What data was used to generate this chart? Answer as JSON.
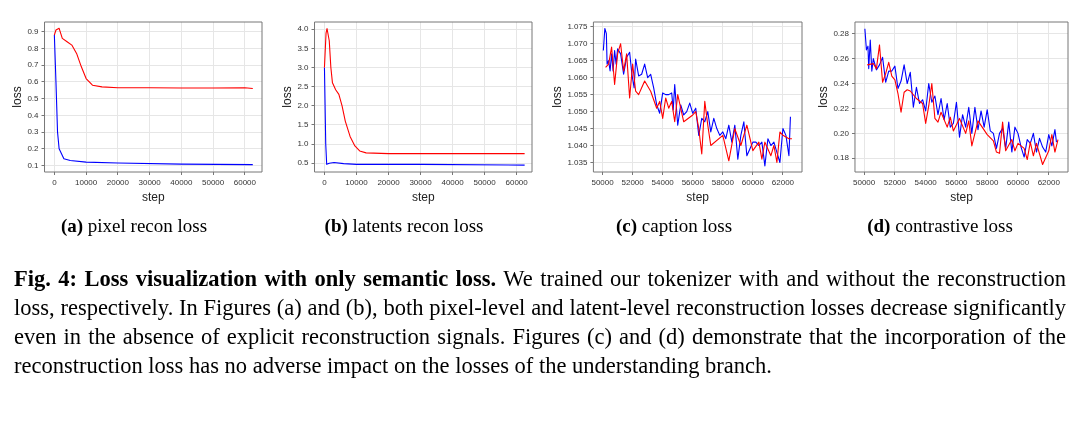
{
  "chart_data": [
    {
      "type": "line",
      "title": "(a) pixel recon loss",
      "xlabel": "step",
      "ylabel": "loss",
      "grid": true,
      "xlim": [
        -3100,
        65400
      ],
      "ylim": [
        0.061,
        0.958
      ],
      "xticks": [
        0,
        10000,
        20000,
        30000,
        40000,
        50000,
        60000
      ],
      "yticks": [
        0.1,
        0.2,
        0.3,
        0.4,
        0.5,
        0.6,
        0.7,
        0.8,
        0.9
      ],
      "series": [
        {
          "color": "#ff0000",
          "x": [
            0,
            500,
            1500,
            2500,
            4000,
            5500,
            7000,
            8500,
            10000,
            12000,
            15000,
            20000,
            30000,
            40000,
            50000,
            60000,
            62500
          ],
          "values": [
            0.88,
            0.91,
            0.92,
            0.86,
            0.84,
            0.82,
            0.77,
            0.69,
            0.62,
            0.58,
            0.57,
            0.565,
            0.565,
            0.563,
            0.563,
            0.565,
            0.56
          ]
        },
        {
          "color": "#0000ff",
          "x": [
            0,
            500,
            1000,
            1500,
            3000,
            5000,
            10000,
            20000,
            40000,
            62500
          ],
          "values": [
            0.88,
            0.6,
            0.3,
            0.2,
            0.14,
            0.13,
            0.12,
            0.115,
            0.108,
            0.105
          ]
        }
      ]
    },
    {
      "type": "line",
      "title": "(b) latents recon loss",
      "xlabel": "step",
      "ylabel": "loss",
      "grid": true,
      "xlim": [
        -3100,
        64800
      ],
      "ylim": [
        0.27,
        4.19
      ],
      "xticks": [
        0,
        10000,
        20000,
        30000,
        40000,
        50000,
        60000
      ],
      "yticks": [
        {
          "value": 0.5,
          "label": "0.5"
        },
        {
          "value": 1,
          "label": "1.0"
        },
        {
          "value": 1.5,
          "label": "1.5"
        },
        {
          "value": 2,
          "label": "2.0"
        },
        {
          "value": 2.5,
          "label": "2.5"
        },
        {
          "value": 3,
          "label": "3.0"
        },
        {
          "value": 3.5,
          "label": "3.5"
        },
        {
          "value": 4,
          "label": "4.0"
        }
      ],
      "series": [
        {
          "color": "#ff0000",
          "x": [
            0,
            500,
            800,
            1500,
            2000,
            2500,
            3500,
            4500,
            5500,
            6500,
            8000,
            9500,
            11000,
            13000,
            20000,
            40000,
            62500
          ],
          "values": [
            3.0,
            3.9,
            4.02,
            3.7,
            3.0,
            2.6,
            2.42,
            2.3,
            2.0,
            1.6,
            1.2,
            0.95,
            0.82,
            0.77,
            0.75,
            0.75,
            0.75
          ]
        },
        {
          "color": "#0000ff",
          "x": [
            0,
            400,
            700,
            1500,
            3000,
            6000,
            10000,
            30000,
            62500
          ],
          "values": [
            3.0,
            1.0,
            0.47,
            0.5,
            0.52,
            0.49,
            0.47,
            0.47,
            0.45
          ]
        }
      ]
    },
    {
      "type": "line",
      "title": "(c) caption loss",
      "xlabel": "step",
      "ylabel": "loss",
      "grid": true,
      "xlim": [
        49390,
        63270
      ],
      "ylim": [
        1.0322,
        1.0764
      ],
      "xticks": [
        50000,
        52000,
        54000,
        56000,
        58000,
        60000,
        62000
      ],
      "yticks": [
        1.035,
        {
          "value": 1.04,
          "label": "1.040"
        },
        1.045,
        {
          "value": 1.05,
          "label": "1.050"
        },
        1.055,
        {
          "value": 1.06,
          "label": "1.060"
        },
        1.065,
        {
          "value": 1.07,
          "label": "1.070"
        },
        1.075
      ],
      "series": [
        {
          "color": "#ff0000",
          "x": [
            50200,
            50400,
            50600,
            50800,
            51000,
            51200,
            51400,
            51600,
            51800,
            52000,
            52200,
            52400,
            52600,
            52800,
            53200,
            53600,
            53800,
            54000,
            54200,
            54400,
            54600,
            54800,
            55000,
            55400,
            56000,
            56200,
            56400,
            56600,
            56800,
            57000,
            57200,
            58000,
            58400,
            58800,
            59200,
            59600,
            60000,
            60400,
            60600,
            60800,
            61000,
            61200,
            61400,
            61600,
            61800,
            62000,
            62400,
            62600
          ],
          "values": [
            1.063,
            1.064,
            1.069,
            1.058,
            1.067,
            1.07,
            1.062,
            1.067,
            1.054,
            1.064,
            1.056,
            1.055,
            1.057,
            1.059,
            1.056,
            1.051,
            1.053,
            1.048,
            1.054,
            1.051,
            1.053,
            1.047,
            1.055,
            1.047,
            1.049,
            1.05,
            1.045,
            1.0375,
            1.053,
            1.046,
            1.04,
            1.043,
            1.0355,
            1.045,
            1.04,
            1.046,
            1.0385,
            1.041,
            1.036,
            1.041,
            1.039,
            1.037,
            1.04,
            1.035,
            1.044,
            1.043,
            1.042,
            1.042
          ]
        },
        {
          "color": "#0000ff",
          "x": [
            50050,
            50150,
            50250,
            50300,
            50400,
            50500,
            50600,
            50700,
            50800,
            50900,
            51000,
            51200,
            51400,
            51600,
            51800,
            51950,
            52100,
            52200,
            52400,
            52600,
            52800,
            53000,
            53200,
            53400,
            53600,
            53800,
            54000,
            54200,
            54400,
            54600,
            54700,
            54800,
            55000,
            55200,
            55400,
            55600,
            55800,
            56000,
            56200,
            56400,
            56600,
            56800,
            57000,
            57200,
            57400,
            57600,
            57800,
            58000,
            58200,
            58400,
            58600,
            58800,
            59000,
            59200,
            59400,
            59600,
            59800,
            60000,
            60200,
            60400,
            60600,
            60800,
            61000,
            61200,
            61400,
            61600,
            61800,
            62000,
            62200,
            62400,
            62500
          ],
          "values": [
            1.068,
            1.0745,
            1.073,
            1.064,
            1.065,
            1.062,
            1.067,
            1.062,
            1.068,
            1.064,
            1.0685,
            1.067,
            1.061,
            1.066,
            1.0675,
            1.061,
            1.057,
            1.0655,
            1.0605,
            1.061,
            1.064,
            1.06,
            1.061,
            1.057,
            1.052,
            1.0495,
            1.0555,
            1.055,
            1.055,
            1.0555,
            1.0505,
            1.058,
            1.046,
            1.052,
            1.049,
            1.05,
            1.0525,
            1.0495,
            1.051,
            1.043,
            1.048,
            1.047,
            1.05,
            1.044,
            1.048,
            1.045,
            1.043,
            1.044,
            1.042,
            1.046,
            1.041,
            1.046,
            1.036,
            1.043,
            1.047,
            1.037,
            1.039,
            1.041,
            1.041,
            1.04,
            1.041,
            1.034,
            1.042,
            1.04,
            1.041,
            1.038,
            1.035,
            1.045,
            1.043,
            1.037,
            1.0485
          ]
        }
      ]
    },
    {
      "type": "line",
      "title": "(d) contrastive loss",
      "xlabel": "step",
      "ylabel": "loss",
      "grid": true,
      "xlim": [
        49406,
        63250
      ],
      "ylim": [
        0.169,
        0.2894
      ],
      "xticks": [
        50000,
        52000,
        54000,
        56000,
        58000,
        60000,
        62000
      ],
      "yticks": [
        0.18,
        {
          "value": 0.2,
          "label": "0.20"
        },
        0.22,
        0.24,
        0.26,
        0.28
      ],
      "series": [
        {
          "color": "#ff0000",
          "x": [
            50200,
            50600,
            50800,
            51000,
            51200,
            51400,
            51600,
            51800,
            52000,
            52200,
            52400,
            52600,
            52800,
            53000,
            53400,
            53800,
            54000,
            54200,
            54400,
            54600,
            54800,
            55000,
            55400,
            55600,
            55800,
            56200,
            56600,
            56800,
            57000,
            57400,
            58000,
            58400,
            58600,
            58800,
            59000,
            59200,
            59600,
            59800,
            60000,
            60400,
            60600,
            60800,
            61000,
            61200,
            61600,
            62000,
            62200,
            62400,
            62600
          ],
          "values": [
            0.255,
            0.256,
            0.252,
            0.271,
            0.241,
            0.248,
            0.257,
            0.246,
            0.243,
            0.232,
            0.217,
            0.233,
            0.235,
            0.234,
            0.228,
            0.224,
            0.208,
            0.222,
            0.24,
            0.212,
            0.209,
            0.217,
            0.205,
            0.213,
            0.202,
            0.212,
            0.2,
            0.21,
            0.19,
            0.21,
            0.199,
            0.194,
            0.185,
            0.184,
            0.209,
            0.186,
            0.195,
            0.186,
            0.192,
            0.188,
            0.179,
            0.193,
            0.182,
            0.192,
            0.175,
            0.186,
            0.199,
            0.185,
            0.195
          ]
        },
        {
          "color": "#0000ff",
          "x": [
            50050,
            50150,
            50250,
            50300,
            50400,
            50500,
            50600,
            50800,
            51000,
            51200,
            51400,
            51600,
            51800,
            52000,
            52200,
            52400,
            52600,
            52800,
            53000,
            53200,
            53400,
            53600,
            53800,
            54000,
            54200,
            54400,
            54600,
            54800,
            55000,
            55200,
            55400,
            55600,
            55800,
            56000,
            56200,
            56400,
            56600,
            56800,
            57000,
            57200,
            57400,
            57600,
            57800,
            58000,
            58200,
            58400,
            58600,
            58800,
            59000,
            59200,
            59400,
            59600,
            59800,
            60000,
            60200,
            60400,
            60600,
            60800,
            61000,
            61200,
            61400,
            61600,
            61800,
            62000,
            62200,
            62400,
            62500
          ],
          "values": [
            0.284,
            0.267,
            0.27,
            0.252,
            0.275,
            0.25,
            0.26,
            0.251,
            0.255,
            0.261,
            0.241,
            0.25,
            0.25,
            0.254,
            0.236,
            0.242,
            0.255,
            0.24,
            0.249,
            0.221,
            0.237,
            0.224,
            0.227,
            0.218,
            0.24,
            0.225,
            0.23,
            0.215,
            0.228,
            0.211,
            0.224,
            0.205,
            0.208,
            0.225,
            0.197,
            0.215,
            0.205,
            0.221,
            0.2,
            0.221,
            0.203,
            0.218,
            0.205,
            0.219,
            0.202,
            0.2,
            0.188,
            0.2,
            0.204,
            0.188,
            0.209,
            0.185,
            0.205,
            0.2,
            0.189,
            0.181,
            0.195,
            0.192,
            0.2,
            0.185,
            0.196,
            0.189,
            0.185,
            0.199,
            0.19,
            0.203,
            0.193
          ]
        }
      ]
    },
    {
      "type": "other",
      "annotations": [
        "Fig. 4: Loss visualization with only semantic loss.",
        "We trained our tokenizer with and without the reconstruction loss, respectively. In Figures (a) and (b), both pixel-level and latent-level reconstruction losses decrease significantly even in the absence of explicit reconstruction signals. Figures (c) and (d) demonstrate that the incorporation of the reconstruction loss has no adverse impact on the losses of the understanding branch."
      ]
    }
  ]
}
